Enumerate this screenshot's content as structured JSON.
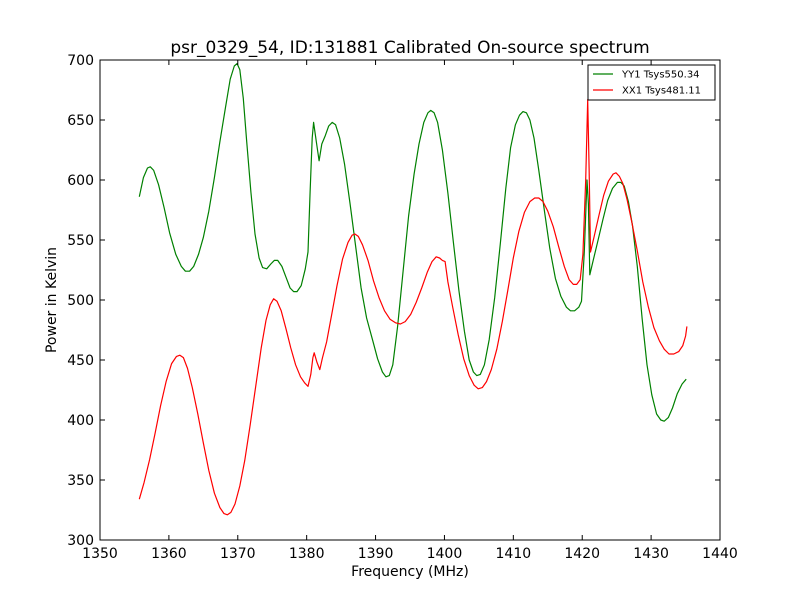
{
  "chart_data": {
    "type": "line",
    "title": "psr_0329_54, ID:131881 Calibrated On-source spectrum",
    "xlabel": "Frequency (MHz)",
    "ylabel": "Power in Kelvin",
    "xlim": [
      1350,
      1440
    ],
    "ylim": [
      300,
      700
    ],
    "xticks": [
      1350,
      1360,
      1370,
      1380,
      1390,
      1400,
      1410,
      1420,
      1430,
      1440
    ],
    "yticks": [
      300,
      350,
      400,
      450,
      500,
      550,
      600,
      650,
      700
    ],
    "grid": false,
    "legend_position": "top-right",
    "series": [
      {
        "name": "YY1 Tsys550.34",
        "color": "#008000",
        "points": [
          [
            1355.7,
            586
          ],
          [
            1356.3,
            602
          ],
          [
            1356.9,
            610
          ],
          [
            1357.3,
            611
          ],
          [
            1357.8,
            608
          ],
          [
            1358.5,
            596
          ],
          [
            1359.3,
            577
          ],
          [
            1360.1,
            556
          ],
          [
            1361.0,
            538
          ],
          [
            1361.8,
            528
          ],
          [
            1362.4,
            524
          ],
          [
            1363.0,
            524
          ],
          [
            1363.6,
            528
          ],
          [
            1364.3,
            538
          ],
          [
            1365.0,
            552
          ],
          [
            1365.8,
            574
          ],
          [
            1366.6,
            602
          ],
          [
            1367.4,
            632
          ],
          [
            1368.2,
            660
          ],
          [
            1368.9,
            684
          ],
          [
            1369.5,
            695
          ],
          [
            1369.9,
            697
          ],
          [
            1370.3,
            692
          ],
          [
            1370.8,
            668
          ],
          [
            1371.3,
            632
          ],
          [
            1371.9,
            590
          ],
          [
            1372.5,
            555
          ],
          [
            1373.1,
            535
          ],
          [
            1373.6,
            527
          ],
          [
            1374.2,
            526
          ],
          [
            1374.8,
            530
          ],
          [
            1375.3,
            533
          ],
          [
            1375.8,
            533
          ],
          [
            1376.4,
            528
          ],
          [
            1377.0,
            519
          ],
          [
            1377.6,
            510
          ],
          [
            1378.1,
            507
          ],
          [
            1378.6,
            507
          ],
          [
            1379.2,
            512
          ],
          [
            1379.8,
            526
          ],
          [
            1380.2,
            540
          ],
          [
            1380.5,
            590
          ],
          [
            1380.8,
            635
          ],
          [
            1381.0,
            648
          ],
          [
            1381.4,
            632
          ],
          [
            1381.8,
            616
          ],
          [
            1382.2,
            630
          ],
          [
            1382.7,
            637
          ],
          [
            1383.2,
            645
          ],
          [
            1383.7,
            648
          ],
          [
            1384.2,
            646
          ],
          [
            1384.8,
            635
          ],
          [
            1385.5,
            613
          ],
          [
            1386.3,
            580
          ],
          [
            1387.1,
            545
          ],
          [
            1387.9,
            510
          ],
          [
            1388.7,
            485
          ],
          [
            1389.6,
            466
          ],
          [
            1390.3,
            451
          ],
          [
            1391.0,
            440
          ],
          [
            1391.5,
            436
          ],
          [
            1392.0,
            437
          ],
          [
            1392.5,
            446
          ],
          [
            1393.2,
            478
          ],
          [
            1394.0,
            524
          ],
          [
            1394.8,
            570
          ],
          [
            1395.6,
            605
          ],
          [
            1396.3,
            630
          ],
          [
            1397.0,
            648
          ],
          [
            1397.6,
            656
          ],
          [
            1398.0,
            658
          ],
          [
            1398.5,
            656
          ],
          [
            1399.0,
            648
          ],
          [
            1399.7,
            625
          ],
          [
            1400.5,
            589
          ],
          [
            1401.3,
            548
          ],
          [
            1402.1,
            508
          ],
          [
            1402.9,
            474
          ],
          [
            1403.6,
            450
          ],
          [
            1404.2,
            440
          ],
          [
            1404.7,
            437
          ],
          [
            1405.2,
            438
          ],
          [
            1405.8,
            446
          ],
          [
            1406.5,
            467
          ],
          [
            1407.3,
            502
          ],
          [
            1408.1,
            546
          ],
          [
            1408.9,
            593
          ],
          [
            1409.6,
            627
          ],
          [
            1410.3,
            646
          ],
          [
            1410.9,
            654
          ],
          [
            1411.4,
            657
          ],
          [
            1411.9,
            656
          ],
          [
            1412.4,
            650
          ],
          [
            1413.0,
            635
          ],
          [
            1413.7,
            608
          ],
          [
            1414.5,
            575
          ],
          [
            1415.3,
            543
          ],
          [
            1416.1,
            518
          ],
          [
            1416.9,
            503
          ],
          [
            1417.7,
            494
          ],
          [
            1418.3,
            491
          ],
          [
            1418.9,
            491
          ],
          [
            1419.5,
            494
          ],
          [
            1419.9,
            499
          ],
          [
            1420.3,
            540
          ],
          [
            1420.7,
            600
          ],
          [
            1420.9,
            580
          ],
          [
            1421.1,
            521
          ],
          [
            1421.6,
            533
          ],
          [
            1422.3,
            550
          ],
          [
            1423.0,
            567
          ],
          [
            1423.7,
            583
          ],
          [
            1424.4,
            593
          ],
          [
            1425.1,
            598
          ],
          [
            1425.6,
            598
          ],
          [
            1426.1,
            595
          ],
          [
            1426.7,
            582
          ],
          [
            1427.3,
            562
          ],
          [
            1428.0,
            528
          ],
          [
            1428.7,
            484
          ],
          [
            1429.4,
            446
          ],
          [
            1430.1,
            421
          ],
          [
            1430.8,
            405
          ],
          [
            1431.4,
            400
          ],
          [
            1431.9,
            399
          ],
          [
            1432.5,
            402
          ],
          [
            1433.1,
            410
          ],
          [
            1433.8,
            422
          ],
          [
            1434.5,
            430
          ],
          [
            1435.1,
            434
          ]
        ]
      },
      {
        "name": "XX1 Tsys481.11",
        "color": "#ff0000",
        "points": [
          [
            1355.7,
            334
          ],
          [
            1356.4,
            348
          ],
          [
            1357.2,
            367
          ],
          [
            1358.0,
            389
          ],
          [
            1358.8,
            412
          ],
          [
            1359.6,
            432
          ],
          [
            1360.4,
            447
          ],
          [
            1361.1,
            453
          ],
          [
            1361.6,
            454
          ],
          [
            1362.1,
            452
          ],
          [
            1362.7,
            443
          ],
          [
            1363.4,
            427
          ],
          [
            1364.2,
            405
          ],
          [
            1365.0,
            381
          ],
          [
            1365.8,
            358
          ],
          [
            1366.6,
            339
          ],
          [
            1367.4,
            327
          ],
          [
            1368.0,
            322
          ],
          [
            1368.5,
            321
          ],
          [
            1369.0,
            323
          ],
          [
            1369.6,
            330
          ],
          [
            1370.3,
            345
          ],
          [
            1371.0,
            366
          ],
          [
            1371.8,
            396
          ],
          [
            1372.6,
            428
          ],
          [
            1373.4,
            460
          ],
          [
            1374.1,
            483
          ],
          [
            1374.7,
            496
          ],
          [
            1375.2,
            501
          ],
          [
            1375.7,
            499
          ],
          [
            1376.3,
            491
          ],
          [
            1377.0,
            476
          ],
          [
            1377.7,
            460
          ],
          [
            1378.4,
            446
          ],
          [
            1379.1,
            436
          ],
          [
            1379.7,
            431
          ],
          [
            1380.2,
            428
          ],
          [
            1380.6,
            438
          ],
          [
            1380.9,
            452
          ],
          [
            1381.1,
            456
          ],
          [
            1381.5,
            448
          ],
          [
            1381.9,
            442
          ],
          [
            1382.3,
            452
          ],
          [
            1382.9,
            465
          ],
          [
            1383.6,
            487
          ],
          [
            1384.4,
            512
          ],
          [
            1385.2,
            534
          ],
          [
            1386.0,
            548
          ],
          [
            1386.6,
            554
          ],
          [
            1387.0,
            555
          ],
          [
            1387.5,
            553
          ],
          [
            1388.1,
            546
          ],
          [
            1388.9,
            533
          ],
          [
            1389.7,
            516
          ],
          [
            1390.5,
            502
          ],
          [
            1391.3,
            491
          ],
          [
            1392.1,
            484
          ],
          [
            1392.9,
            481
          ],
          [
            1393.6,
            480
          ],
          [
            1394.3,
            482
          ],
          [
            1395.1,
            488
          ],
          [
            1395.9,
            498
          ],
          [
            1396.7,
            510
          ],
          [
            1397.5,
            523
          ],
          [
            1398.2,
            532
          ],
          [
            1398.8,
            536
          ],
          [
            1399.3,
            535
          ],
          [
            1399.7,
            533
          ],
          [
            1400.1,
            532
          ],
          [
            1400.5,
            515
          ],
          [
            1401.2,
            494
          ],
          [
            1402.0,
            471
          ],
          [
            1402.8,
            451
          ],
          [
            1403.6,
            437
          ],
          [
            1404.3,
            429
          ],
          [
            1404.9,
            426
          ],
          [
            1405.5,
            427
          ],
          [
            1406.1,
            432
          ],
          [
            1406.8,
            442
          ],
          [
            1407.6,
            459
          ],
          [
            1408.4,
            482
          ],
          [
            1409.2,
            508
          ],
          [
            1410.0,
            535
          ],
          [
            1410.8,
            557
          ],
          [
            1411.6,
            573
          ],
          [
            1412.4,
            582
          ],
          [
            1413.1,
            585
          ],
          [
            1413.7,
            585
          ],
          [
            1414.3,
            582
          ],
          [
            1415.0,
            574
          ],
          [
            1415.8,
            561
          ],
          [
            1416.6,
            544
          ],
          [
            1417.4,
            528
          ],
          [
            1418.1,
            517
          ],
          [
            1418.7,
            513
          ],
          [
            1419.2,
            513
          ],
          [
            1419.7,
            517
          ],
          [
            1420.1,
            538
          ],
          [
            1420.5,
            600
          ],
          [
            1420.8,
            667
          ],
          [
            1421.0,
            610
          ],
          [
            1421.2,
            540
          ],
          [
            1421.7,
            552
          ],
          [
            1422.4,
            570
          ],
          [
            1423.1,
            587
          ],
          [
            1423.8,
            599
          ],
          [
            1424.5,
            605
          ],
          [
            1424.9,
            606
          ],
          [
            1425.4,
            603
          ],
          [
            1425.9,
            597
          ],
          [
            1426.5,
            584
          ],
          [
            1427.2,
            565
          ],
          [
            1428.0,
            541
          ],
          [
            1428.8,
            515
          ],
          [
            1429.6,
            494
          ],
          [
            1430.4,
            477
          ],
          [
            1431.2,
            466
          ],
          [
            1431.9,
            459
          ],
          [
            1432.6,
            455
          ],
          [
            1433.3,
            455
          ],
          [
            1434.0,
            457
          ],
          [
            1434.6,
            462
          ],
          [
            1435.0,
            470
          ],
          [
            1435.2,
            478
          ]
        ]
      }
    ]
  }
}
